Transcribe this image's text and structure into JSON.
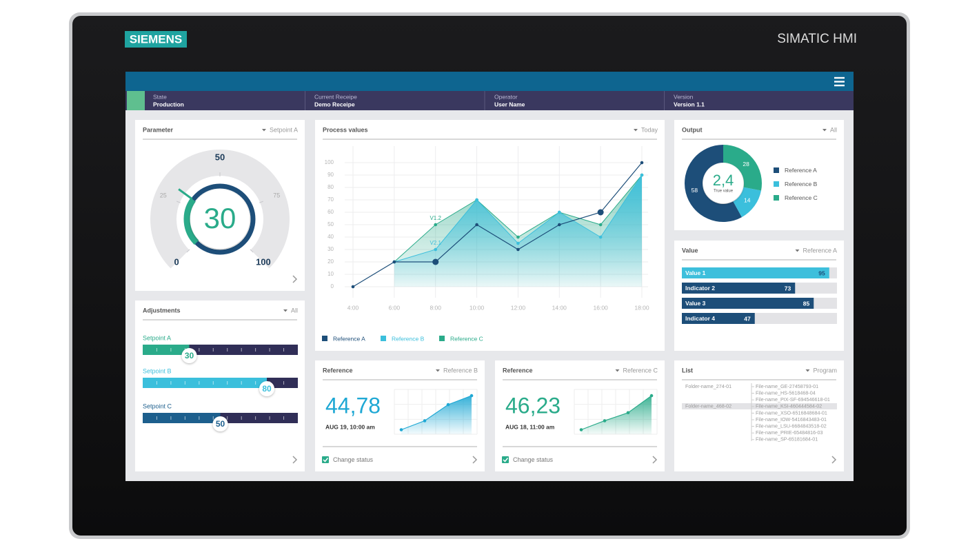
{
  "device": {
    "brand": "SIEMENS",
    "model": "SIMATIC HMI"
  },
  "status_bar": [
    {
      "label": "State",
      "value": "Production"
    },
    {
      "label": "Current Receipe",
      "value": "Demo Receipe"
    },
    {
      "label": "Operator",
      "value": "User Name"
    },
    {
      "label": "Version",
      "value": "Version 1.1"
    }
  ],
  "parameter": {
    "title": "Parameter",
    "filter": "Setpoint A",
    "gauge": {
      "value": 30,
      "range": [
        0,
        100
      ],
      "ticks": [
        0,
        25,
        50,
        75,
        100
      ],
      "color": "#2aab8a",
      "ring_color": "#1d4e79"
    }
  },
  "adjustments": {
    "title": "Adjustments",
    "filter": "All",
    "range": [
      0,
      100
    ],
    "sliders": [
      {
        "name": "Setpoint A",
        "value": 30,
        "color": "#2aab8a"
      },
      {
        "name": "Setpoint B",
        "value": 80,
        "color": "#3bbfdc"
      },
      {
        "name": "Setpoint C",
        "value": 50,
        "color": "#1d5f8d"
      }
    ]
  },
  "process_values": {
    "title": "Process values",
    "filter": "Today",
    "type": "area",
    "categories": [
      "4:00",
      "6:00",
      "8:00",
      "10:00",
      "12:00",
      "14:00",
      "16:00",
      "18:00"
    ],
    "ylim": [
      0,
      100
    ],
    "yticks": [
      0,
      10,
      20,
      30,
      40,
      50,
      60,
      70,
      80,
      90,
      100
    ],
    "grid": true,
    "series": [
      {
        "name": "Reference A",
        "kind": "line",
        "color": "#1d4e79",
        "values": [
          0,
          20,
          20,
          50,
          30,
          50,
          60,
          100
        ]
      },
      {
        "name": "Reference B",
        "kind": "area",
        "color": "#3bbfdc",
        "values": [
          null,
          20,
          30,
          70,
          35,
          60,
          40,
          90
        ]
      },
      {
        "name": "Reference C",
        "kind": "area",
        "color": "#2aab8a",
        "values": [
          null,
          20,
          50,
          70,
          40,
          60,
          50,
          90
        ]
      }
    ],
    "annotations": [
      "V1.2",
      "V2.1"
    ]
  },
  "reference_cards": [
    {
      "title": "Reference",
      "filter": "Reference B",
      "value": "44,78",
      "date": "AUG 19, 10:00 am",
      "color": "#1fa8d4",
      "trend": [
        10,
        30,
        66,
        86
      ],
      "ylim": [
        0,
        100
      ],
      "checkbox": "Change status"
    },
    {
      "title": "Reference",
      "filter": "Reference C",
      "value": "46,23",
      "date": "AUG 18, 11:00 am",
      "color": "#2aab8a",
      "trend": [
        10,
        30,
        48,
        86
      ],
      "ylim": [
        0,
        100
      ],
      "checkbox": "Change status"
    }
  ],
  "output": {
    "title": "Output",
    "filter": "All",
    "center_value": "2,4",
    "center_label": "True value",
    "series": [
      {
        "name": "Reference A",
        "value": 58,
        "color": "#1d4e79"
      },
      {
        "name": "Reference B",
        "value": 14,
        "color": "#3bbfdc"
      },
      {
        "name": "Reference C",
        "value": 28,
        "color": "#2aab8a"
      }
    ]
  },
  "value": {
    "title": "Value",
    "filter": "Reference A",
    "xlim": [
      0,
      100
    ],
    "bars": [
      {
        "name": "Value 1",
        "value": 95,
        "color": "#3dbfdc"
      },
      {
        "name": "Indicator 2",
        "value": 73,
        "color": "#1d4e79"
      },
      {
        "name": "Value 3",
        "value": 85,
        "color": "#1d4e79"
      },
      {
        "name": "Indicator 4",
        "value": 47,
        "color": "#1d4e79"
      }
    ]
  },
  "list": {
    "title": "List",
    "filter": "Program",
    "folders": [
      "Folder-name_274-01",
      "Folder-name_468-02"
    ],
    "files": [
      "File-name_GE-27458793-01",
      "File-name_HS-5618468-04",
      "File-name_PIX-SF-694546618-01",
      "File-name_KSI-460444584-02",
      "File-name_XSO-6516848684-01",
      "File-name_IOW-5416843483-01",
      "File-name_LSU-6684843518-02",
      "File-name_PRIE-65484816-03",
      "File-name_SP-65181684-01"
    ]
  }
}
